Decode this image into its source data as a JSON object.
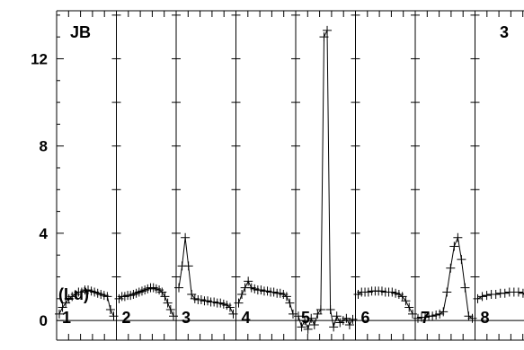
{
  "chart_data": {
    "type": "line",
    "title": "",
    "corner_left": "JB",
    "corner_right": "3",
    "annotation": "(Lu)",
    "ylim": [
      -0.9,
      14.2
    ],
    "yticks": [
      0,
      4,
      8,
      12
    ],
    "ytick_labels": [
      "0",
      "4",
      "8",
      "12"
    ],
    "panel_labels": [
      "1",
      "2",
      "3",
      "4",
      "5",
      "6",
      "7",
      "8"
    ],
    "panels": [
      {
        "label": "1",
        "values": [
          0.3,
          0.6,
          0.8,
          1.0,
          1.1,
          1.2,
          1.3,
          1.3,
          1.4,
          1.4,
          1.35,
          1.3,
          1.25,
          1.2,
          1.15,
          1.1,
          0.5,
          0.2
        ]
      },
      {
        "label": "2",
        "values": [
          1.0,
          1.1,
          1.1,
          1.15,
          1.15,
          1.2,
          1.25,
          1.3,
          1.35,
          1.4,
          1.45,
          1.5,
          1.5,
          1.45,
          1.4,
          1.3,
          1.1,
          0.8,
          0.5,
          0.2
        ]
      },
      {
        "label": "3",
        "values": [
          1.5,
          2.5,
          3.8,
          2.5,
          1.2,
          1.0,
          0.95,
          0.95,
          0.9,
          0.9,
          0.85,
          0.85,
          0.8,
          0.8,
          0.75,
          0.7,
          0.6,
          0.3
        ]
      },
      {
        "label": "4",
        "values": [
          0.8,
          1.2,
          1.5,
          1.8,
          1.5,
          1.45,
          1.4,
          1.4,
          1.35,
          1.35,
          1.3,
          1.3,
          1.25,
          1.25,
          1.2,
          1.1,
          0.8,
          0.3
        ]
      },
      {
        "label": "5",
        "values": [
          0.2,
          -0.3,
          0.0,
          -0.4,
          0.1,
          -0.2,
          0.3,
          0.5,
          13.0,
          13.3,
          0.5,
          -0.3,
          0.2,
          -0.1,
          0.0,
          0.1,
          -0.2,
          0.05
        ]
      },
      {
        "label": "6",
        "values": [
          1.2,
          1.3,
          1.3,
          1.3,
          1.35,
          1.35,
          1.35,
          1.35,
          1.3,
          1.3,
          1.3,
          1.25,
          1.2,
          1.1,
          0.9,
          0.6,
          0.3
        ]
      },
      {
        "label": "7",
        "values": [
          0.1,
          0.15,
          0.15,
          0.2,
          0.2,
          0.25,
          0.3,
          0.4,
          1.3,
          2.4,
          3.4,
          3.8,
          2.8,
          1.5,
          0.2,
          0.1
        ]
      },
      {
        "label": "8",
        "values": [
          1.0,
          1.1,
          1.15,
          1.2,
          1.2,
          1.25,
          1.25,
          1.3,
          1.3,
          1.3,
          1.25,
          1.2,
          1.2
        ]
      }
    ]
  }
}
